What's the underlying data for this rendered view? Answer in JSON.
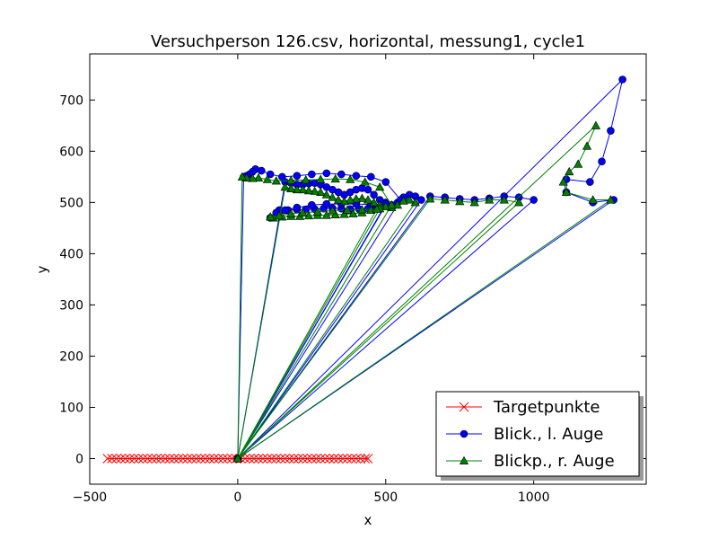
{
  "chart_data": {
    "type": "line",
    "title": "Versuchperson 126.csv, horizontal, messung1, cycle1",
    "xlabel": "x",
    "ylabel": "y",
    "xlim": [
      -500,
      1380
    ],
    "ylim": [
      -50,
      790
    ],
    "xticks": [
      -500,
      0,
      500,
      1000
    ],
    "xtick_labels": [
      "−500",
      "0",
      "500",
      "1000"
    ],
    "yticks": [
      0,
      100,
      200,
      300,
      400,
      500,
      600,
      700
    ],
    "ytick_labels": [
      "0",
      "100",
      "200",
      "300",
      "400",
      "500",
      "600",
      "700"
    ],
    "grid": false,
    "legend_position": "lower-right",
    "series": [
      {
        "name": "Targetpunkte",
        "color": "#ff0000",
        "marker": "x",
        "points": [
          [
            -440,
            0
          ],
          [
            -425,
            0
          ],
          [
            -410,
            0
          ],
          [
            -395,
            0
          ],
          [
            -380,
            0
          ],
          [
            -365,
            0
          ],
          [
            -350,
            0
          ],
          [
            -335,
            0
          ],
          [
            -320,
            0
          ],
          [
            -305,
            0
          ],
          [
            -290,
            0
          ],
          [
            -275,
            0
          ],
          [
            -260,
            0
          ],
          [
            -245,
            0
          ],
          [
            -230,
            0
          ],
          [
            -215,
            0
          ],
          [
            -200,
            0
          ],
          [
            -185,
            0
          ],
          [
            -170,
            0
          ],
          [
            -155,
            0
          ],
          [
            -140,
            0
          ],
          [
            -125,
            0
          ],
          [
            -110,
            0
          ],
          [
            -95,
            0
          ],
          [
            -80,
            0
          ],
          [
            -65,
            0
          ],
          [
            -50,
            0
          ],
          [
            -35,
            0
          ],
          [
            -20,
            0
          ],
          [
            -5,
            0
          ],
          [
            10,
            0
          ],
          [
            25,
            0
          ],
          [
            40,
            0
          ],
          [
            55,
            0
          ],
          [
            70,
            0
          ],
          [
            85,
            0
          ],
          [
            100,
            0
          ],
          [
            115,
            0
          ],
          [
            130,
            0
          ],
          [
            145,
            0
          ],
          [
            160,
            0
          ],
          [
            175,
            0
          ],
          [
            190,
            0
          ],
          [
            205,
            0
          ],
          [
            220,
            0
          ],
          [
            235,
            0
          ],
          [
            250,
            0
          ],
          [
            265,
            0
          ],
          [
            280,
            0
          ],
          [
            295,
            0
          ],
          [
            310,
            0
          ],
          [
            325,
            0
          ],
          [
            340,
            0
          ],
          [
            355,
            0
          ],
          [
            370,
            0
          ],
          [
            385,
            0
          ],
          [
            400,
            0
          ],
          [
            415,
            0
          ],
          [
            430,
            0
          ],
          [
            440,
            0
          ]
        ]
      },
      {
        "name": "Blick., l. Auge",
        "color": "#0000ff",
        "marker": "circle",
        "points": [
          [
            0,
            0
          ],
          [
            1300,
            740
          ],
          [
            1260,
            640
          ],
          [
            1230,
            580
          ],
          [
            1190,
            540
          ],
          [
            1110,
            545
          ],
          [
            1110,
            520
          ],
          [
            1200,
            500
          ],
          [
            1270,
            505
          ],
          [
            0,
            0
          ],
          [
            1000,
            505
          ],
          [
            950,
            510
          ],
          [
            900,
            512
          ],
          [
            850,
            508
          ],
          [
            800,
            505
          ],
          [
            750,
            507
          ],
          [
            700,
            510
          ],
          [
            650,
            512
          ],
          [
            0,
            0
          ],
          [
            620,
            505
          ],
          [
            600,
            512
          ],
          [
            580,
            515
          ],
          [
            560,
            510
          ],
          [
            540,
            500
          ],
          [
            520,
            495
          ],
          [
            500,
            500
          ],
          [
            480,
            505
          ],
          [
            460,
            515
          ],
          [
            440,
            525
          ],
          [
            420,
            528
          ],
          [
            400,
            525
          ],
          [
            380,
            520
          ],
          [
            360,
            515
          ],
          [
            340,
            520
          ],
          [
            320,
            525
          ],
          [
            300,
            530
          ],
          [
            280,
            535
          ],
          [
            260,
            538
          ],
          [
            240,
            537
          ],
          [
            220,
            535
          ],
          [
            200,
            535
          ],
          [
            180,
            538
          ],
          [
            160,
            540
          ],
          [
            0,
            0
          ],
          [
            500,
            495
          ],
          [
            470,
            490
          ],
          [
            440,
            488
          ],
          [
            410,
            487
          ],
          [
            380,
            487
          ],
          [
            350,
            488
          ],
          [
            320,
            489
          ],
          [
            290,
            488
          ],
          [
            260,
            487
          ],
          [
            230,
            486
          ],
          [
            200,
            486
          ],
          [
            170,
            485
          ],
          [
            140,
            485
          ],
          [
            110,
            470
          ],
          [
            130,
            480
          ],
          [
            160,
            485
          ],
          [
            200,
            490
          ],
          [
            250,
            495
          ],
          [
            300,
            497
          ],
          [
            350,
            497
          ],
          [
            400,
            497
          ],
          [
            450,
            496
          ],
          [
            500,
            497
          ],
          [
            0,
            0
          ],
          [
            550,
            505
          ],
          [
            500,
            540
          ],
          [
            450,
            550
          ],
          [
            400,
            552
          ],
          [
            350,
            555
          ],
          [
            300,
            557
          ],
          [
            250,
            555
          ],
          [
            200,
            552
          ],
          [
            150,
            550
          ],
          [
            110,
            555
          ],
          [
            80,
            562
          ],
          [
            60,
            565
          ],
          [
            50,
            560
          ],
          [
            40,
            555
          ],
          [
            30,
            552
          ],
          [
            20,
            550
          ],
          [
            0,
            0
          ]
        ]
      },
      {
        "name": "Blickp., r. Auge",
        "color": "#008000",
        "marker": "triangle",
        "points": [
          [
            0,
            0
          ],
          [
            1210,
            650
          ],
          [
            1180,
            610
          ],
          [
            1150,
            575
          ],
          [
            1120,
            560
          ],
          [
            1100,
            540
          ],
          [
            1110,
            520
          ],
          [
            1200,
            505
          ],
          [
            1260,
            505
          ],
          [
            0,
            0
          ],
          [
            950,
            500
          ],
          [
            900,
            505
          ],
          [
            850,
            505
          ],
          [
            800,
            500
          ],
          [
            750,
            502
          ],
          [
            700,
            505
          ],
          [
            650,
            507
          ],
          [
            0,
            0
          ],
          [
            600,
            500
          ],
          [
            580,
            505
          ],
          [
            560,
            503
          ],
          [
            540,
            495
          ],
          [
            520,
            490
          ],
          [
            500,
            492
          ],
          [
            480,
            495
          ],
          [
            460,
            500
          ],
          [
            440,
            505
          ],
          [
            420,
            508
          ],
          [
            400,
            507
          ],
          [
            380,
            505
          ],
          [
            360,
            502
          ],
          [
            340,
            505
          ],
          [
            320,
            510
          ],
          [
            300,
            515
          ],
          [
            280,
            520
          ],
          [
            260,
            522
          ],
          [
            240,
            523
          ],
          [
            220,
            525
          ],
          [
            200,
            525
          ],
          [
            180,
            527
          ],
          [
            160,
            530
          ],
          [
            0,
            0
          ],
          [
            480,
            488
          ],
          [
            450,
            485
          ],
          [
            420,
            480
          ],
          [
            390,
            478
          ],
          [
            360,
            477
          ],
          [
            330,
            476
          ],
          [
            300,
            475
          ],
          [
            270,
            475
          ],
          [
            240,
            474
          ],
          [
            210,
            473
          ],
          [
            180,
            473
          ],
          [
            150,
            472
          ],
          [
            120,
            470
          ],
          [
            110,
            472
          ],
          [
            140,
            474
          ],
          [
            180,
            478
          ],
          [
            220,
            480
          ],
          [
            270,
            482
          ],
          [
            320,
            484
          ],
          [
            370,
            485
          ],
          [
            420,
            486
          ],
          [
            470,
            487
          ],
          [
            0,
            0
          ],
          [
            520,
            495
          ],
          [
            480,
            530
          ],
          [
            430,
            540
          ],
          [
            380,
            545
          ],
          [
            330,
            546
          ],
          [
            280,
            545
          ],
          [
            230,
            544
          ],
          [
            180,
            543
          ],
          [
            130,
            542
          ],
          [
            100,
            545
          ],
          [
            70,
            548
          ],
          [
            50,
            547
          ],
          [
            30,
            548
          ],
          [
            15,
            550
          ],
          [
            0,
            0
          ]
        ]
      }
    ]
  }
}
